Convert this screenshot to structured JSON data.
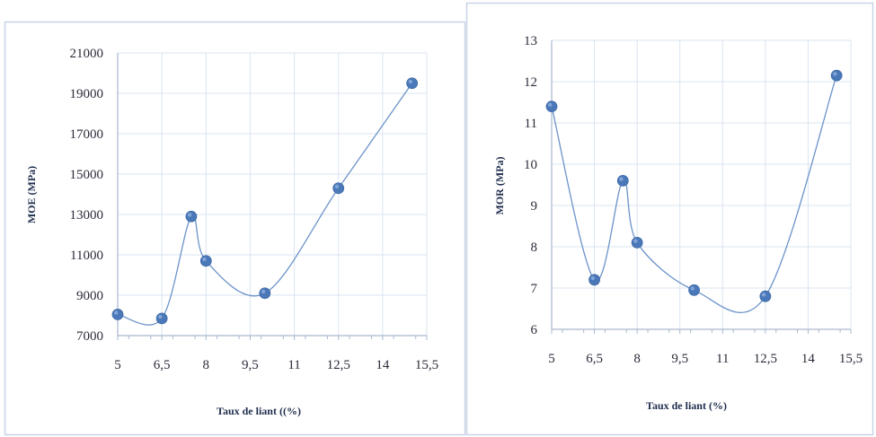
{
  "colors": {
    "frame": "#c8d4e6",
    "grid": "#d9e4f2",
    "axis": "#a8b8cf",
    "line": "#6b93c9",
    "marker": "#4a78b8"
  },
  "chart_data": [
    {
      "type": "scatter",
      "smooth": true,
      "xlabel": "Taux de liant ((%)",
      "ylabel": "MOE (MPa)",
      "xlim": [
        5,
        15.5
      ],
      "ylim": [
        7000,
        21000
      ],
      "x_ticks": [
        "5",
        "6,5",
        "8",
        "9,5",
        "11",
        "12,5",
        "14",
        "15,5"
      ],
      "y_ticks": [
        "7000",
        "9000",
        "11000",
        "13000",
        "15000",
        "17000",
        "19000",
        "21000"
      ],
      "grid": true,
      "series": [
        {
          "x": [
            5,
            6.5,
            7.5,
            8,
            10,
            12.5,
            15
          ],
          "y": [
            8050,
            7850,
            12900,
            10700,
            9100,
            14300,
            19500
          ]
        }
      ]
    },
    {
      "type": "scatter",
      "smooth": true,
      "xlabel": "Taux de liant (%)",
      "ylabel": "MOR (MPa)",
      "xlim": [
        5,
        15.5
      ],
      "ylim": [
        6,
        13
      ],
      "x_ticks": [
        "5",
        "6,5",
        "8",
        "9,5",
        "11",
        "12,5",
        "14",
        "15,5"
      ],
      "y_ticks": [
        "6",
        "7",
        "8",
        "9",
        "10",
        "11",
        "12",
        "13"
      ],
      "grid": true,
      "series": [
        {
          "x": [
            5,
            6.5,
            7.5,
            8,
            10,
            12.5,
            15
          ],
          "y": [
            11.4,
            7.2,
            9.6,
            8.1,
            6.95,
            6.8,
            12.15
          ]
        }
      ]
    }
  ]
}
